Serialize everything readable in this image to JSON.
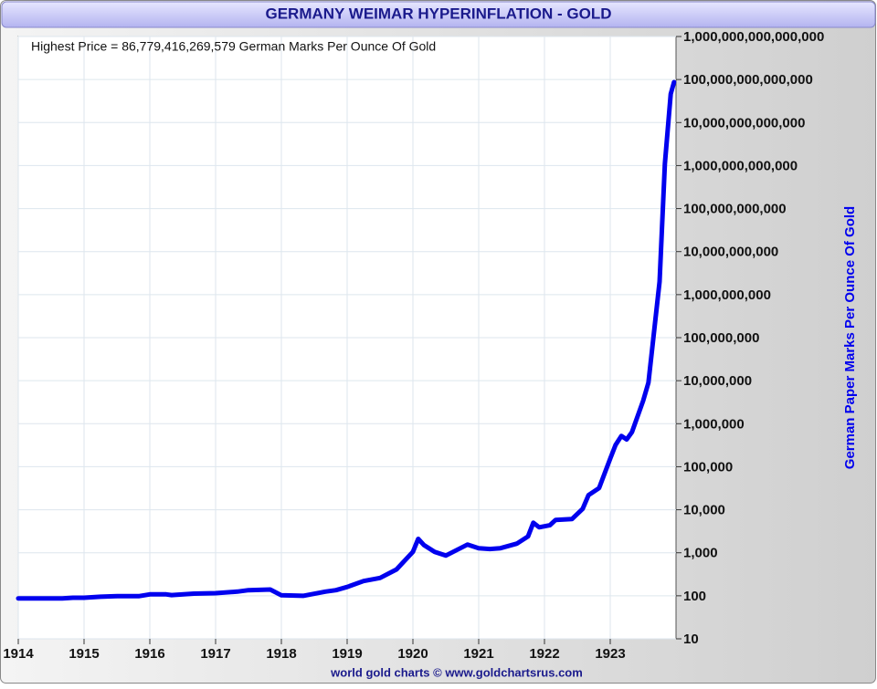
{
  "chart_data": {
    "type": "line",
    "title": "GERMANY WEIMAR HYPERINFLATION - GOLD",
    "annotation": "Highest Price = 86,779,416,269,579 German Marks Per Ounce Of Gold",
    "y_axis_label": "German Paper Marks Per Ounce Of Gold",
    "footer": "world gold charts © www.goldchartsrus.com",
    "log_scale": true,
    "grid": true,
    "xlim": [
      1914,
      1924
    ],
    "xticks": [
      1914,
      1915,
      1916,
      1917,
      1918,
      1919,
      1920,
      1921,
      1922,
      1923
    ],
    "ylim": [
      10,
      1000000000000000
    ],
    "yticks": [
      10,
      100,
      {
        "value": 1000,
        "label": "1,000"
      },
      {
        "value": 10000,
        "label": "10,000"
      },
      {
        "value": 100000,
        "label": "100,000"
      },
      {
        "value": 1000000,
        "label": "1,000,000"
      },
      {
        "value": 10000000,
        "label": "10,000,000"
      },
      {
        "value": 100000000,
        "label": "100,000,000"
      },
      {
        "value": 1000000000,
        "label": "1,000,000,000"
      },
      {
        "value": 10000000000,
        "label": "10,000,000,000"
      },
      {
        "value": 100000000000,
        "label": "100,000,000,000"
      },
      {
        "value": 1000000000000,
        "label": "1,000,000,000,000"
      },
      {
        "value": 10000000000000,
        "label": "10,000,000,000,000"
      },
      {
        "value": 100000000000000,
        "label": "100,000,000,000,000"
      },
      {
        "value": 1000000000000000,
        "label": "1,000,000,000,000,000"
      }
    ],
    "x": [
      1914.0,
      1914.67,
      1914.83,
      1915.0,
      1915.25,
      1915.5,
      1915.83,
      1916.0,
      1916.25,
      1916.33,
      1916.67,
      1917.0,
      1917.33,
      1917.5,
      1917.83,
      1918.0,
      1918.33,
      1918.67,
      1918.83,
      1919.0,
      1919.25,
      1919.5,
      1919.75,
      1920.0,
      1920.08,
      1920.17,
      1920.33,
      1920.5,
      1920.83,
      1921.0,
      1921.17,
      1921.33,
      1921.58,
      1921.75,
      1921.83,
      1921.92,
      1922.08,
      1922.17,
      1922.42,
      1922.58,
      1922.67,
      1922.83,
      1923.0,
      1923.08,
      1923.17,
      1923.25,
      1923.33,
      1923.5,
      1923.58,
      1923.75,
      1923.83,
      1923.92,
      1923.97
    ],
    "series": [
      {
        "name": "Gold",
        "color": "#0000ee",
        "values": [
          87,
          87,
          90,
          90,
          95,
          98,
          98,
          108,
          108,
          104,
          112,
          115,
          125,
          135,
          140,
          103,
          100,
          125,
          135,
          160,
          220,
          260,
          410,
          1050,
          2100,
          1500,
          1050,
          860,
          1550,
          1280,
          1220,
          1280,
          1630,
          2400,
          5000,
          3900,
          4350,
          5800,
          6100,
          10500,
          21800,
          32000,
          155000,
          320000,
          520000,
          430000,
          640000,
          3400000,
          9000000,
          2000000000,
          1100000000000,
          46000000000000,
          86779416269579
        ]
      }
    ]
  }
}
